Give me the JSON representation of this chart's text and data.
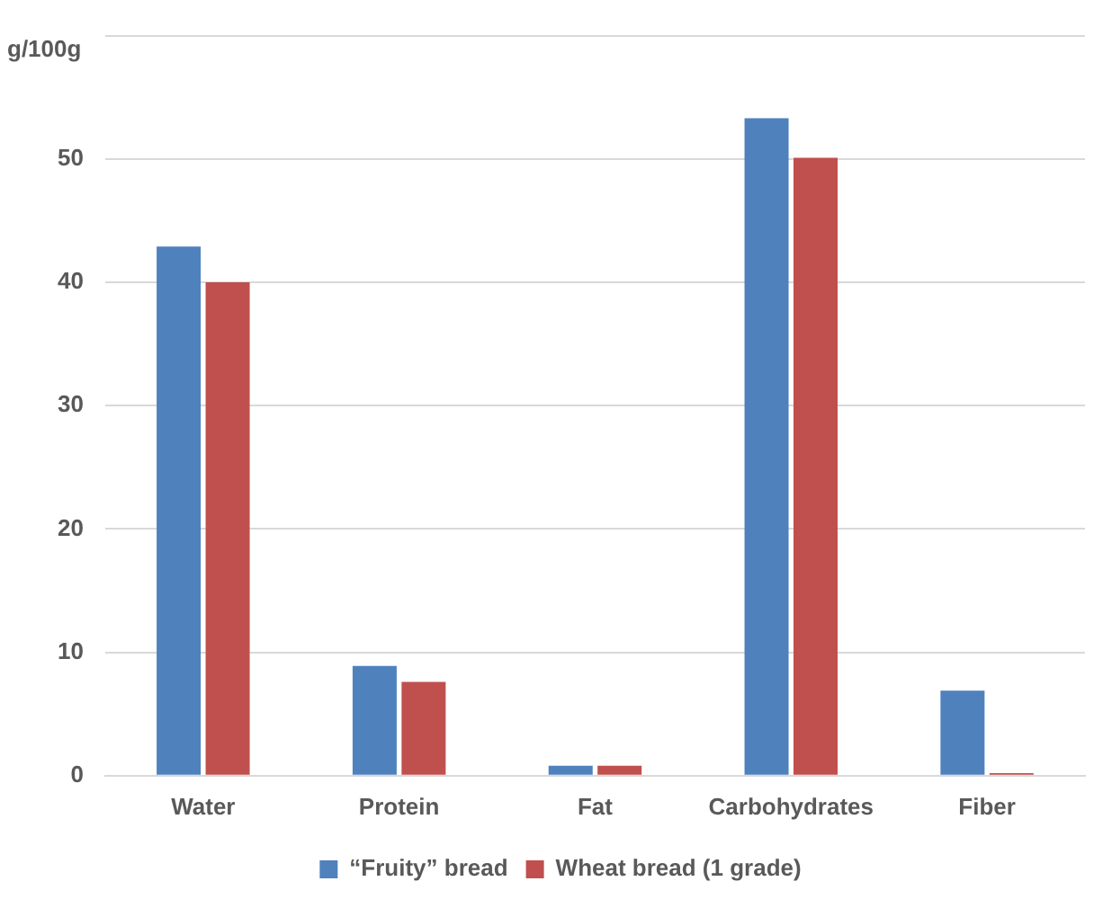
{
  "chart_data": {
    "type": "bar",
    "ylabel": "g/100g",
    "categories": [
      "Water",
      "Protein",
      "Fat",
      "Carbohydrates",
      "Fiber"
    ],
    "series": [
      {
        "name": "“Fruity” bread",
        "color": "#4f81bd",
        "values": [
          42.9,
          8.9,
          0.8,
          53.3,
          6.9
        ]
      },
      {
        "name": "Wheat bread (1 grade)",
        "color": "#c0504d",
        "values": [
          40,
          7.6,
          0.8,
          50.1,
          0.2
        ]
      }
    ],
    "ylim": [
      0,
      60
    ],
    "yticks": [
      0,
      10,
      20,
      30,
      40,
      50,
      {
        "value": 60,
        "label": null
      }
    ],
    "grid": "y",
    "legend": "bottom"
  }
}
